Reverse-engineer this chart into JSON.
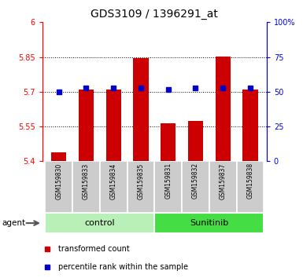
{
  "title": "GDS3109 / 1396291_at",
  "samples": [
    "GSM159830",
    "GSM159833",
    "GSM159834",
    "GSM159835",
    "GSM159831",
    "GSM159832",
    "GSM159837",
    "GSM159838"
  ],
  "red_values": [
    5.44,
    5.71,
    5.71,
    5.845,
    5.565,
    5.575,
    5.853,
    5.71
  ],
  "blue_values": [
    5.7,
    5.715,
    5.715,
    5.715,
    5.71,
    5.715,
    5.715,
    5.715
  ],
  "y_min": 5.4,
  "y_max": 6.0,
  "y_ticks": [
    5.4,
    5.55,
    5.7,
    5.85,
    6.0
  ],
  "y_tick_labels": [
    "5.4",
    "5.55",
    "5.7",
    "5.85",
    "6"
  ],
  "y2_ticks": [
    0,
    25,
    50,
    75,
    100
  ],
  "y2_tick_labels": [
    "0",
    "25",
    "50",
    "75",
    "100%"
  ],
  "groups": [
    {
      "label": "control",
      "indices": [
        0,
        1,
        2,
        3
      ],
      "color": "#b8f0b8"
    },
    {
      "label": "Sunitinib",
      "indices": [
        4,
        5,
        6,
        7
      ],
      "color": "#44dd44"
    }
  ],
  "agent_label": "agent",
  "bar_color": "#cc0000",
  "marker_color": "#0000cc",
  "bar_width": 0.55,
  "background_plot": "#ffffff",
  "background_xtick": "#cccccc",
  "title_fontsize": 10,
  "tick_fontsize": 7,
  "xtick_fontsize": 5.5,
  "legend_red": "transformed count",
  "legend_blue": "percentile rank within the sample"
}
